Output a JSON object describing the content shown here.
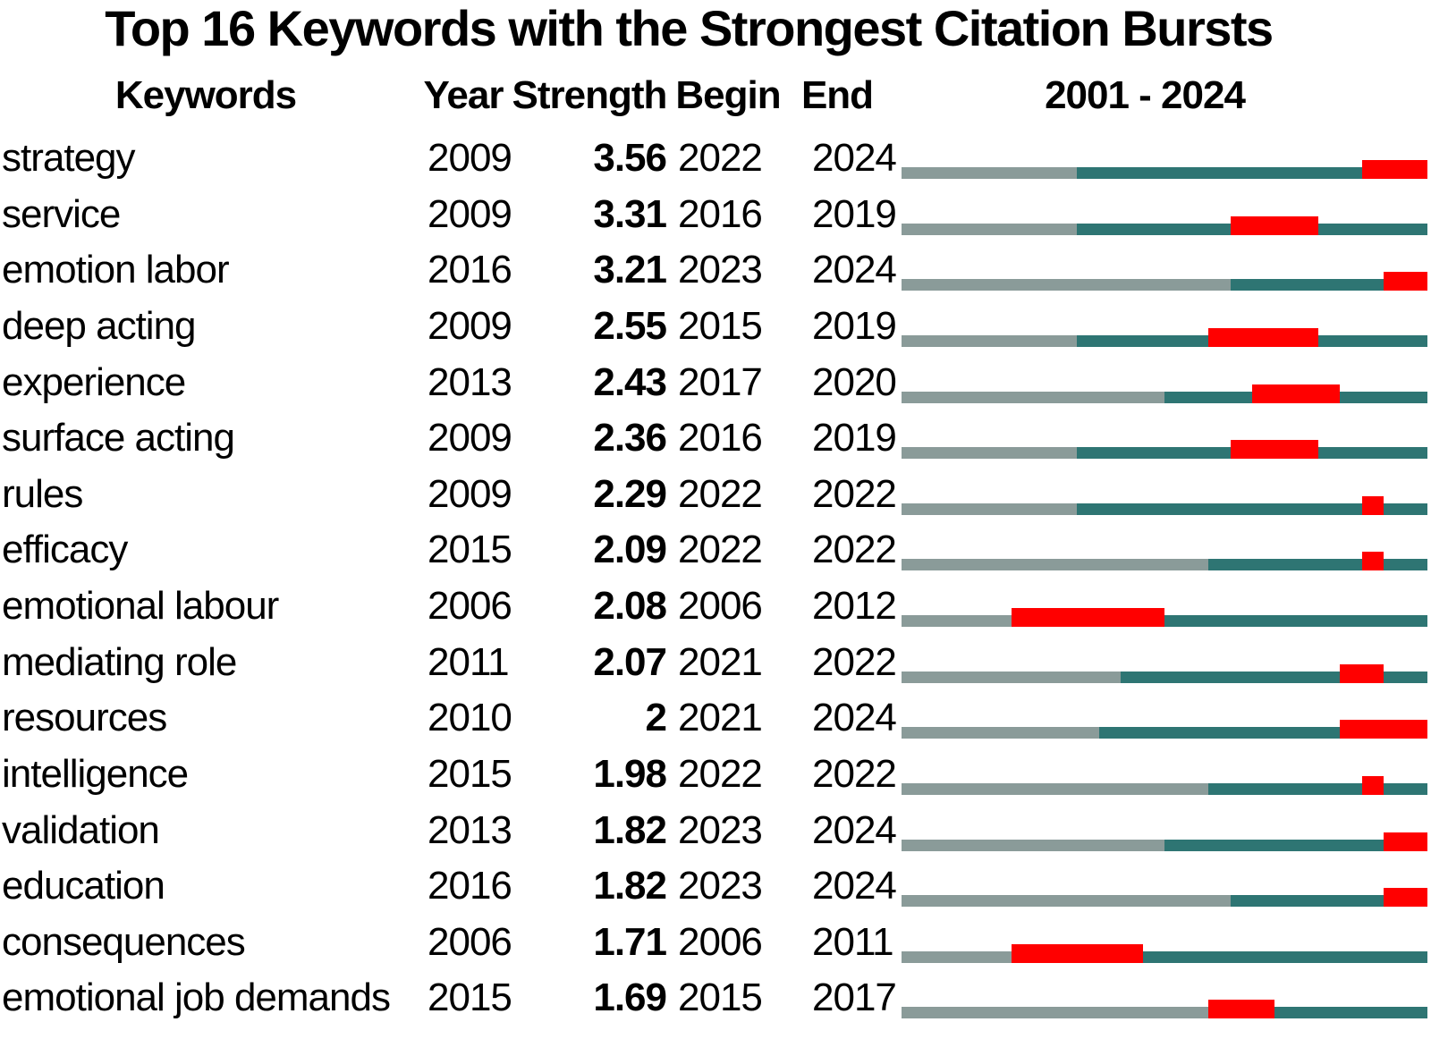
{
  "title": "Top 16 Keywords with the Strongest Citation Bursts",
  "headers": {
    "keywords": "Keywords",
    "year": "Year",
    "strength": "Strength",
    "begin": "Begin",
    "end": "End",
    "timeline": "2001 - 2024"
  },
  "chart_data": {
    "type": "table",
    "title": "Top 16 Keywords with the Strongest Citation Bursts",
    "columns": [
      "Keywords",
      "Year",
      "Strength",
      "Begin",
      "End",
      "2001 - 2024"
    ],
    "timeline": {
      "start_year": 2001,
      "end_year": 2024
    },
    "colors": {
      "pre_period": "#8a9b99",
      "active_period": "#2e7573",
      "burst_period": "#ff0000"
    },
    "rows": [
      {
        "keyword": "strategy",
        "year": 2009,
        "strength": "3.56",
        "begin": 2022,
        "end": 2024
      },
      {
        "keyword": "service",
        "year": 2009,
        "strength": "3.31",
        "begin": 2016,
        "end": 2019
      },
      {
        "keyword": "emotion labor",
        "year": 2016,
        "strength": "3.21",
        "begin": 2023,
        "end": 2024
      },
      {
        "keyword": "deep acting",
        "year": 2009,
        "strength": "2.55",
        "begin": 2015,
        "end": 2019
      },
      {
        "keyword": "experience",
        "year": 2013,
        "strength": "2.43",
        "begin": 2017,
        "end": 2020
      },
      {
        "keyword": "surface acting",
        "year": 2009,
        "strength": "2.36",
        "begin": 2016,
        "end": 2019
      },
      {
        "keyword": "rules",
        "year": 2009,
        "strength": "2.29",
        "begin": 2022,
        "end": 2022
      },
      {
        "keyword": "efficacy",
        "year": 2015,
        "strength": "2.09",
        "begin": 2022,
        "end": 2022
      },
      {
        "keyword": "emotional labour",
        "year": 2006,
        "strength": "2.08",
        "begin": 2006,
        "end": 2012
      },
      {
        "keyword": "mediating role",
        "year": 2011,
        "strength": "2.07",
        "begin": 2021,
        "end": 2022
      },
      {
        "keyword": "resources",
        "year": 2010,
        "strength": "2",
        "begin": 2021,
        "end": 2024
      },
      {
        "keyword": "intelligence",
        "year": 2015,
        "strength": "1.98",
        "begin": 2022,
        "end": 2022
      },
      {
        "keyword": "validation",
        "year": 2013,
        "strength": "1.82",
        "begin": 2023,
        "end": 2024
      },
      {
        "keyword": "education",
        "year": 2016,
        "strength": "1.82",
        "begin": 2023,
        "end": 2024
      },
      {
        "keyword": "consequences",
        "year": 2006,
        "strength": "1.71",
        "begin": 2006,
        "end": 2011
      },
      {
        "keyword": "emotional job demands",
        "year": 2015,
        "strength": "1.69",
        "begin": 2015,
        "end": 2017
      }
    ]
  }
}
